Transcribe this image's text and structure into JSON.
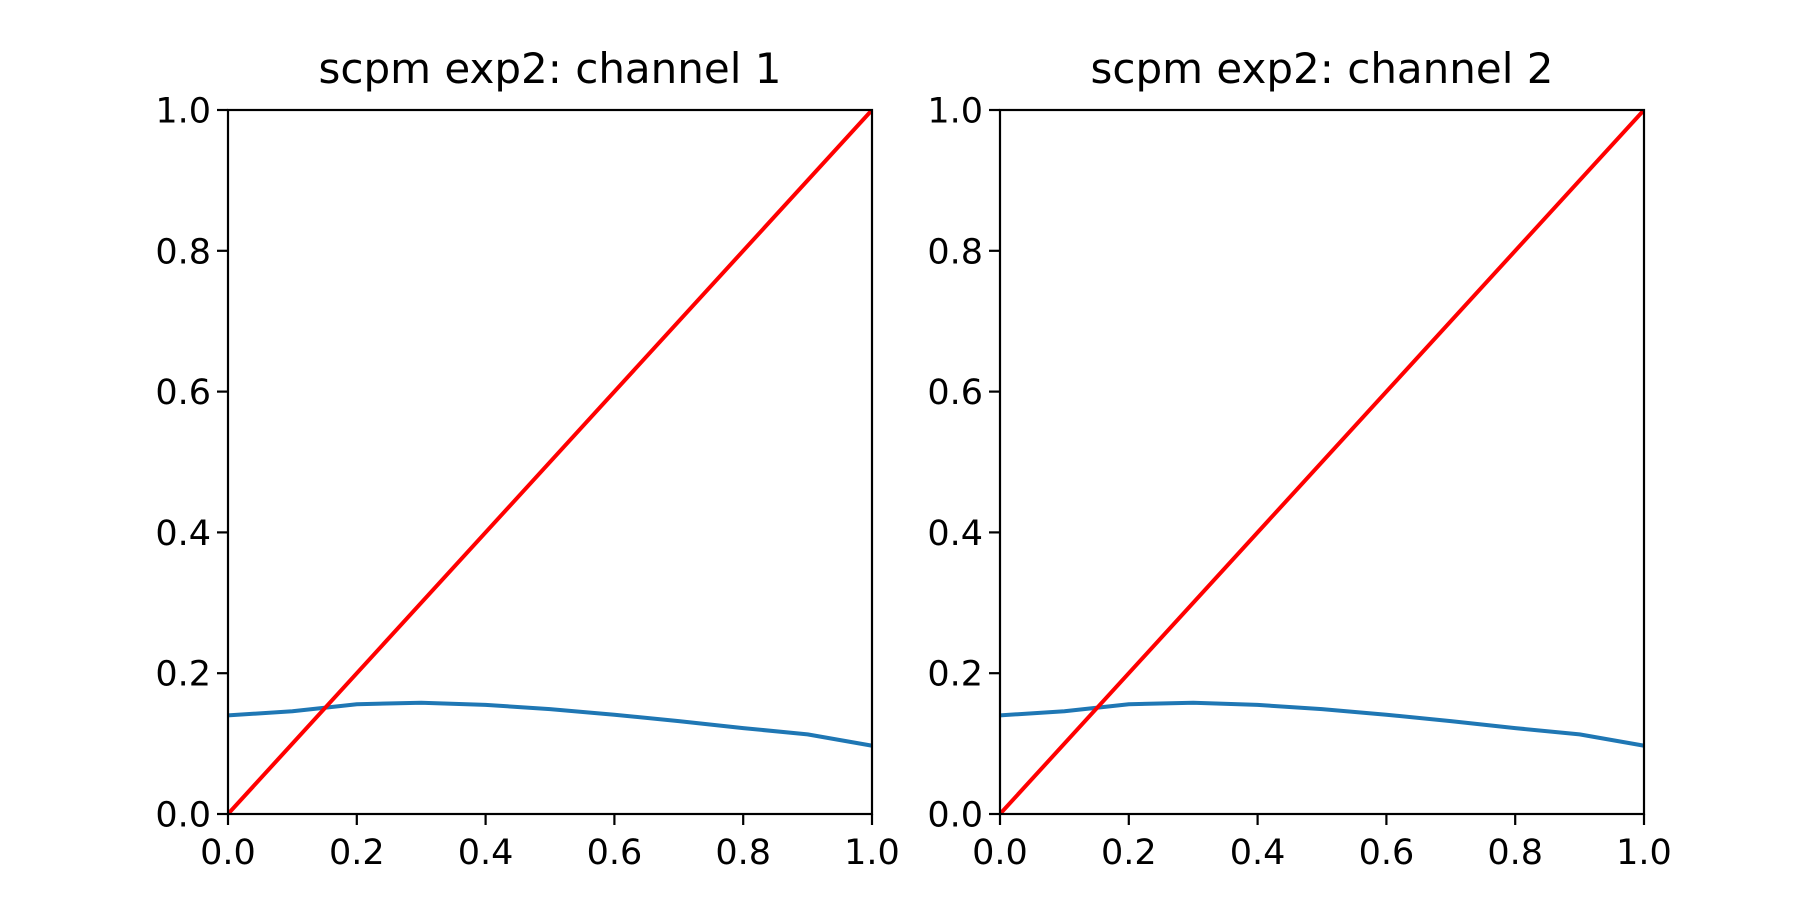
{
  "colors": {
    "blue": "#1f77b4",
    "red": "#ff0000",
    "axes": "#000000",
    "background": "#ffffff"
  },
  "chart_data": [
    {
      "type": "line",
      "title": "scpm exp2: channel 1",
      "xlabel": "",
      "ylabel": "",
      "xlim": [
        0,
        1
      ],
      "ylim": [
        0,
        1
      ],
      "grid": false,
      "x_ticks": [
        "0.0",
        "0.2",
        "0.4",
        "0.6",
        "0.8",
        "1.0"
      ],
      "y_ticks": [
        "0.0",
        "0.2",
        "0.4",
        "0.6",
        "0.8",
        "1.0"
      ],
      "series": [
        {
          "color": "#1f77b4",
          "x": [
            0.0,
            0.1,
            0.2,
            0.3,
            0.4,
            0.5,
            0.6,
            0.7,
            0.8,
            0.9,
            1.0
          ],
          "y": [
            0.14,
            0.146,
            0.156,
            0.158,
            0.155,
            0.149,
            0.141,
            0.132,
            0.122,
            0.113,
            0.097
          ]
        },
        {
          "color": "#ff0000",
          "x": [
            0.0,
            1.0
          ],
          "y": [
            0.0,
            1.0
          ]
        }
      ]
    },
    {
      "type": "line",
      "title": "scpm exp2: channel 2",
      "xlabel": "",
      "ylabel": "",
      "xlim": [
        0,
        1
      ],
      "ylim": [
        0,
        1
      ],
      "grid": false,
      "x_ticks": [
        "0.0",
        "0.2",
        "0.4",
        "0.6",
        "0.8",
        "1.0"
      ],
      "y_ticks": [
        "0.0",
        "0.2",
        "0.4",
        "0.6",
        "0.8",
        "1.0"
      ],
      "series": [
        {
          "color": "#1f77b4",
          "x": [
            0.0,
            0.1,
            0.2,
            0.3,
            0.4,
            0.5,
            0.6,
            0.7,
            0.8,
            0.9,
            1.0
          ],
          "y": [
            0.14,
            0.146,
            0.156,
            0.158,
            0.155,
            0.149,
            0.141,
            0.132,
            0.122,
            0.113,
            0.097
          ]
        },
        {
          "color": "#ff0000",
          "x": [
            0.0,
            1.0
          ],
          "y": [
            0.0,
            1.0
          ]
        }
      ]
    }
  ]
}
